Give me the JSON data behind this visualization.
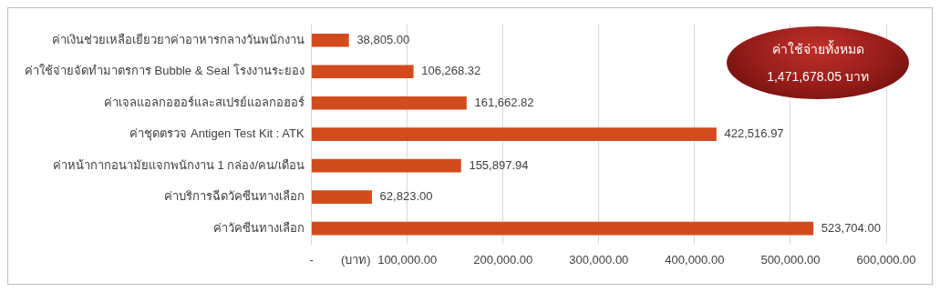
{
  "chart_data": {
    "type": "bar",
    "orientation": "horizontal",
    "categories": [
      "ค่าเงินช่วยเหลือเยียวยาค่าอาหารกลางวันพนักงาน",
      "ค่าใช้จ่ายจัดทำมาตรการ Bubble & Seal โรงงานระยอง",
      "ค่าเจลแอลกอฮอร์และสเปรย์แอลกอฮอร์",
      "ค่าชุดตรวจ Antigen Test Kit : ATK",
      "ค่าหน้ากากอนามัยแจกพนักงาน 1 กล่อง/คน/เดือน",
      "ค่าบริการฉีดวัคซีนทางเลือก",
      "ค่าวัคซีนทางเลือก"
    ],
    "values": [
      38805,
      106268.32,
      161662.82,
      422516.97,
      155897.94,
      62823,
      523704
    ],
    "value_labels": [
      "38,805.00",
      "106,268.32",
      "161,662.82",
      "422,516.97",
      "155,897.94",
      "62,823.00",
      "523,704.00"
    ],
    "color": "#d24b1c",
    "xlim": [
      0,
      600000
    ],
    "xticks": [
      {
        "value": 0,
        "label": "-"
      },
      {
        "value": 100000,
        "label": "100,000.00"
      },
      {
        "value": 200000,
        "label": "200,000.00"
      },
      {
        "value": 300000,
        "label": "300,000.00"
      },
      {
        "value": 400000,
        "label": "400,000.00"
      },
      {
        "value": 500000,
        "label": "500,000.00"
      },
      {
        "value": 600000,
        "label": "600,000.00"
      }
    ],
    "xlabel": "(บาท)",
    "grid": "x",
    "legend": false,
    "annotations": [
      "ค่าใช้จ่ายทั้งหมด",
      "1,471,678.05 บาท"
    ]
  }
}
